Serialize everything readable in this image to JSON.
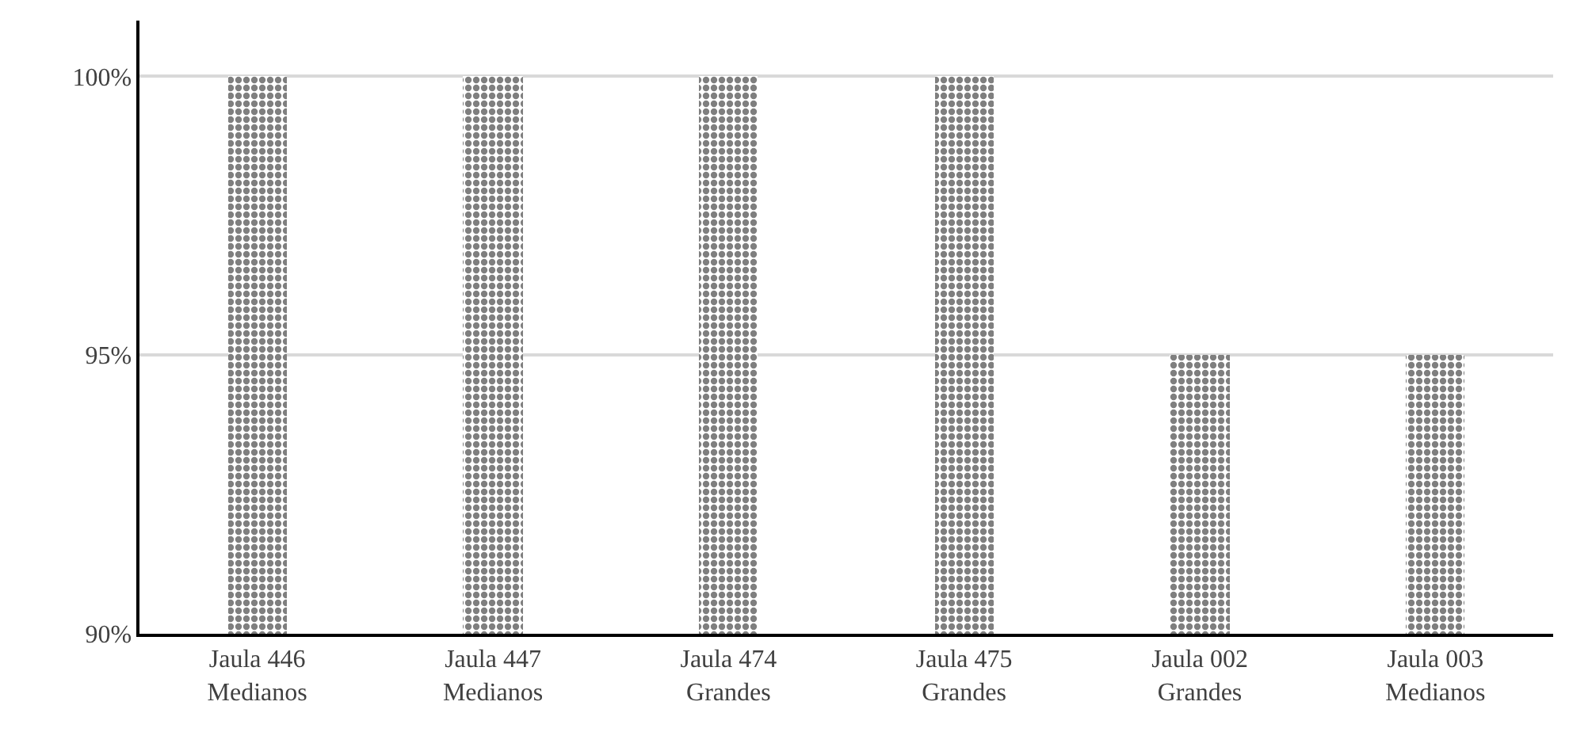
{
  "chart_data": {
    "type": "bar",
    "categories": [
      "Jaula 446\nMedianos",
      "Jaula 447\nMedianos",
      "Jaula 474\nGrandes",
      "Jaula 475\nGrandes",
      "Jaula 002\nGrandes",
      "Jaula 003\nMedianos"
    ],
    "values": [
      100,
      100,
      100,
      100,
      95,
      95
    ],
    "color": "#000000",
    "ylim": [
      90,
      101
    ],
    "yticks": [
      {
        "value": 90,
        "label": "90%"
      },
      {
        "value": 95,
        "label": "95%"
      },
      {
        "value": 100,
        "label": "100%"
      }
    ],
    "grid": "y"
  }
}
